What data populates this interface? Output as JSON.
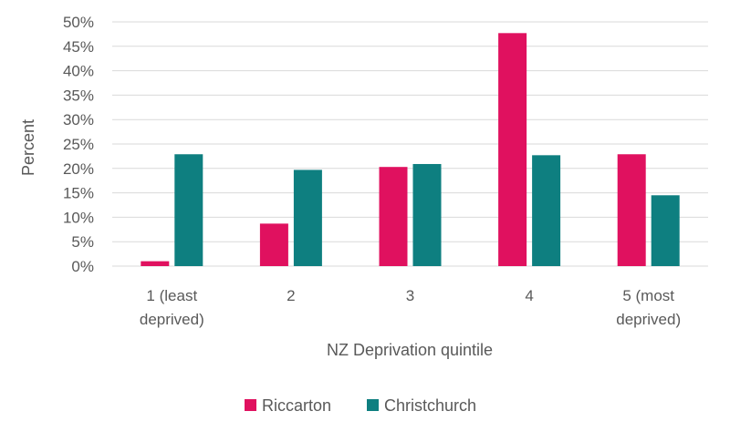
{
  "chart_data": {
    "type": "bar",
    "title": "",
    "xlabel": "NZ Deprivation quintile",
    "ylabel": "Percent",
    "categories": [
      [
        "1 (least",
        "deprived)"
      ],
      [
        "2"
      ],
      [
        "3"
      ],
      [
        "4"
      ],
      [
        "5 (most",
        "deprived)"
      ]
    ],
    "series": [
      {
        "name": "Riccarton",
        "color": "#E0115F",
        "values": [
          1,
          8.7,
          20.3,
          47.7,
          22.9
        ]
      },
      {
        "name": "Christchurch",
        "color": "#0E7F80",
        "values": [
          22.9,
          19.7,
          20.9,
          22.7,
          14.5
        ]
      }
    ],
    "ylim": [
      0,
      50
    ],
    "yticks": [
      "0%",
      "5%",
      "10%",
      "15%",
      "20%",
      "25%",
      "30%",
      "35%",
      "40%",
      "45%",
      "50%"
    ],
    "grid": true,
    "legend_position": "bottom",
    "gridline_color": "#D9D9D9"
  }
}
